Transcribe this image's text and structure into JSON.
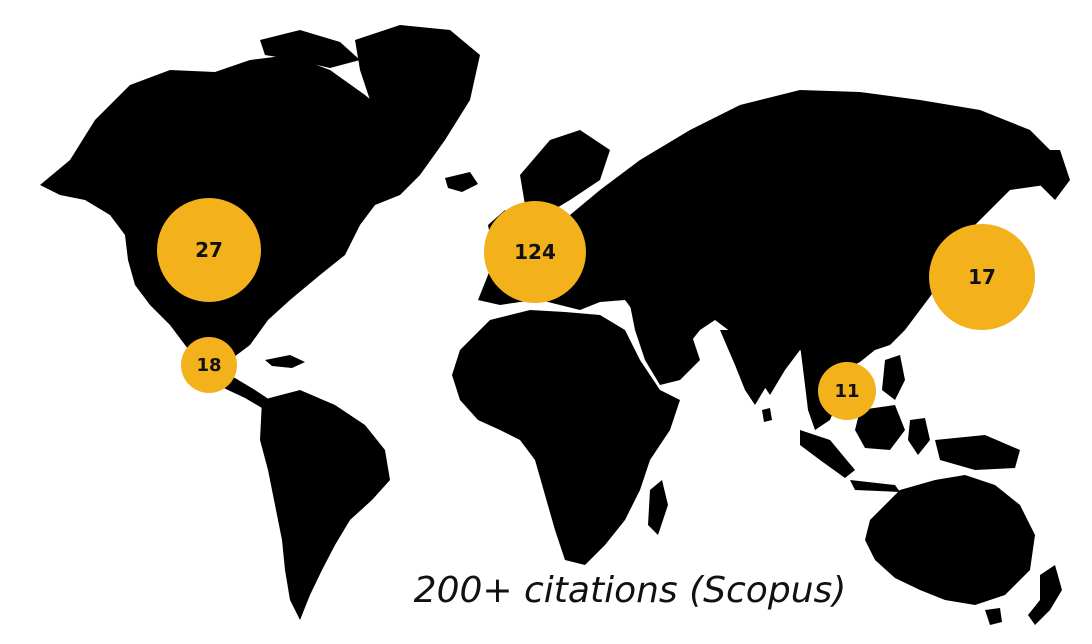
{
  "colors": {
    "background": "#ffffff",
    "land": "#000000",
    "bubble": "#f3b11c",
    "bubble_text": "#111111",
    "caption_text": "#111111"
  },
  "map": {
    "type": "world-map-bubbles",
    "bubbles": [
      {
        "region": "north-america",
        "label": "27",
        "value": 27
      },
      {
        "region": "mexico",
        "label": "18",
        "value": 18
      },
      {
        "region": "europe",
        "label": "124",
        "value": 124
      },
      {
        "region": "east-asia",
        "label": "17",
        "value": 17
      },
      {
        "region": "southeast-asia",
        "label": "11",
        "value": 11
      }
    ]
  },
  "caption": "200+ citations (Scopus)"
}
